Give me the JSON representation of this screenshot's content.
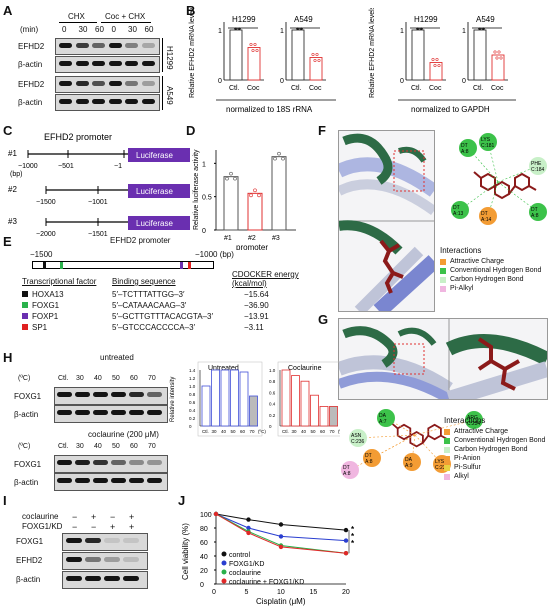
{
  "panels": [
    "A",
    "B",
    "C",
    "D",
    "E",
    "F",
    "G",
    "H",
    "I",
    "J"
  ],
  "A": {
    "min_label": "(min)",
    "groups": [
      "CHX",
      "Coc + CHX"
    ],
    "times": [
      "0",
      "30",
      "60",
      "0",
      "30",
      "60"
    ],
    "rows": [
      "EFHD2",
      "β-actin",
      "EFHD2",
      "β-actin"
    ],
    "cells": [
      "H1299",
      "A549"
    ]
  },
  "B": {
    "ylabel": "Relative EFHD2 mRNA levels",
    "cells": [
      "H1299",
      "A549",
      "H1299",
      "A549"
    ],
    "x": [
      "Ctl.",
      "Coc"
    ],
    "tick1": "1",
    "tick0": "0",
    "sig": "**",
    "norm1": "normalized to 18S rRNA",
    "norm2": "normalized to GAPDH",
    "chart_data": [
      {
        "type": "bar",
        "title": "H1299",
        "categories": [
          "Ctl.",
          "Coc"
        ],
        "values": [
          1.0,
          0.65
        ]
      },
      {
        "type": "bar",
        "title": "A549",
        "categories": [
          "Ctl.",
          "Coc"
        ],
        "values": [
          1.0,
          0.45
        ]
      },
      {
        "type": "bar",
        "title": "H1299",
        "categories": [
          "Ctl.",
          "Coc"
        ],
        "values": [
          1.0,
          0.35
        ]
      },
      {
        "type": "bar",
        "title": "A549",
        "categories": [
          "Ctl.",
          "Coc"
        ],
        "values": [
          1.0,
          0.5
        ]
      }
    ]
  },
  "C": {
    "title": "EFHD2 promoter",
    "constructs": [
      "#1",
      "#2",
      "#3"
    ],
    "bp": "(bp)",
    "pos1": [
      "−1000",
      "−501",
      "−1"
    ],
    "pos2": [
      "−1500",
      "−1001"
    ],
    "pos3": [
      "−2000",
      "−1501"
    ],
    "luc": "Luciferase",
    "luc_color": "#6a2fb0"
  },
  "D": {
    "ylabel": "Relative luciferase activity\n(coclaurine/untreated)",
    "xlabel": "promoter",
    "ticks": [
      "0",
      "0.5",
      "1"
    ],
    "chart_data": {
      "type": "bar",
      "categories": [
        "#1",
        "#2",
        "#3"
      ],
      "values": [
        0.8,
        0.55,
        1.1
      ],
      "ylim": [
        0,
        1.2
      ],
      "colors": [
        "#555555",
        "#e03030",
        "#555555"
      ]
    }
  },
  "E": {
    "title": "EFHD2 promoter",
    "left": "−1500",
    "right": "−1000 (bp)",
    "headers": [
      "Transcriptional factor",
      "Binding sequence",
      "CDOCKER energy\n(kcal/mol)"
    ],
    "rows": [
      {
        "tf": "HOXA13",
        "seq": "5′–TCTTTATTGG–3′",
        "energy": "−15.64",
        "color": "#111111"
      },
      {
        "tf": "FOXG1",
        "seq": "5′–CATAAACAAG–3′",
        "energy": "−36.90",
        "color": "#2bb24c"
      },
      {
        "tf": "FOXP1",
        "seq": "5′–GCTTGTTTACACGTA–3′",
        "energy": "−13.91",
        "color": "#6a2fb0"
      },
      {
        "tf": "SP1",
        "seq": "5′–GTCCCACCCCA–3′",
        "energy": "−3.11",
        "color": "#e02020"
      }
    ]
  },
  "F": {
    "residues": [
      "DT\nA:8",
      "LYS\nC:181",
      "PHE\nC:184",
      "DT\nA:13",
      "DT\nA:14",
      "DT\nA:8"
    ],
    "legend_title": "Interactions",
    "legend": [
      {
        "label": "Attractive Charge",
        "color": "#f39c34"
      },
      {
        "label": "Conventional Hydrogen Bond",
        "color": "#3cc24a"
      },
      {
        "label": "Carbon Hydrogen Bond",
        "color": "#c8f0c8"
      },
      {
        "label": "Pi-Alkyl",
        "color": "#f0b6e0"
      }
    ]
  },
  "G": {
    "residues": [
      "DA\nA:7",
      "ARG\nC:234",
      "ASN\nC:236",
      "DT\nA:8",
      "DA\nA:9",
      "LYS\nC:237",
      "DT\nA:8"
    ],
    "legend_title": "Interactions",
    "legend": [
      {
        "label": "Attractive Charge",
        "color": "#f39c34"
      },
      {
        "label": "Conventional Hydrogen Bond",
        "color": "#3cc24a"
      },
      {
        "label": "Carbon Hydrogen Bond",
        "color": "#c8f0c8"
      },
      {
        "label": "Pi-Anion",
        "color": "#f39c34"
      },
      {
        "label": "Pi-Sulfur",
        "color": "#e8d040"
      },
      {
        "label": "Alkyl",
        "color": "#f0b6e0"
      }
    ]
  },
  "H": {
    "untreated": "untreated",
    "treated": "coclaurine (200 μM)",
    "temp_unit": "(ºC)",
    "temps": [
      "Ctl.",
      "30",
      "40",
      "50",
      "60",
      "70"
    ],
    "rows": [
      "FOXG1",
      "β-actin"
    ],
    "ylabel": "Relative intensity\n(FOXG1)",
    "chart_data": [
      {
        "type": "bar",
        "title": "Untreated",
        "categories": [
          "Ctl.",
          "30",
          "40",
          "50",
          "60",
          "70"
        ],
        "values": [
          1.0,
          1.4,
          1.4,
          1.4,
          1.35,
          0.75
        ],
        "ylim": [
          0,
          1.4
        ]
      },
      {
        "type": "bar",
        "title": "Coclaurine",
        "categories": [
          "Ctl.",
          "30",
          "40",
          "50",
          "60",
          "70"
        ],
        "values": [
          1.0,
          0.9,
          0.8,
          0.55,
          0.35,
          0.35
        ],
        "ylim": [
          0,
          1.0
        ]
      }
    ],
    "yt1": [
      "1.4",
      "1.2",
      "1.0",
      "0.8",
      "0.6",
      "0.4",
      "0.2",
      "0"
    ],
    "yt2": [
      "1.0",
      "0.8",
      "0.6",
      "0.4",
      "0.2",
      "0"
    ]
  },
  "I": {
    "conditions": [
      "coclaurine",
      "FOXG1/KD"
    ],
    "signs": [
      [
        "−",
        "+",
        "−",
        "+"
      ],
      [
        "−",
        "−",
        "+",
        "+"
      ]
    ],
    "rows": [
      "FOXG1",
      "EFHD2",
      "β-actin"
    ]
  },
  "J": {
    "ylabel": "Cell viability (%)",
    "xlabel": "Cisplatin (μM)",
    "yticks": [
      "0",
      "20",
      "40",
      "60",
      "80",
      "100"
    ],
    "xticks": [
      "0",
      "5",
      "10",
      "15",
      "20"
    ],
    "stars": [
      "*",
      "*",
      "*"
    ],
    "chart_data": {
      "type": "line",
      "x": [
        0,
        5,
        10,
        20
      ],
      "ylim": [
        0,
        100
      ],
      "series": [
        {
          "name": "control",
          "color": "#111111",
          "values": [
            100,
            92,
            85,
            77
          ]
        },
        {
          "name": "FOXG1/KD",
          "color": "#2a3ed0",
          "values": [
            100,
            80,
            68,
            62
          ]
        },
        {
          "name": "coclaurine",
          "color": "#2ab04a",
          "values": [
            100,
            75,
            55,
            44
          ]
        },
        {
          "name": "coclaurine + FOXG1/KD",
          "color": "#e02828",
          "values": [
            100,
            73,
            53,
            44
          ]
        }
      ]
    }
  }
}
